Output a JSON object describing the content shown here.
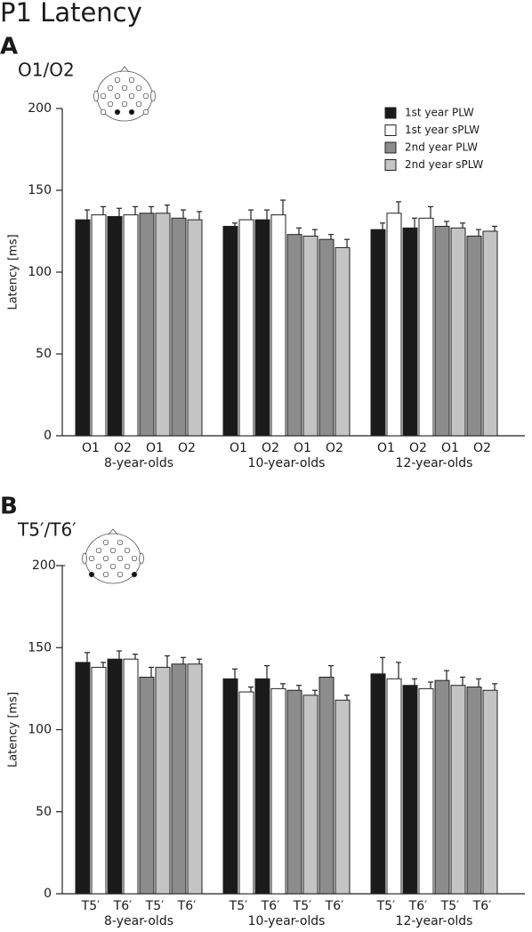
{
  "title": "P1 Latency",
  "chart_data": [
    {
      "type": "bar",
      "label": "A",
      "subtitle": "O1/O2",
      "ylabel": "Latency [ms]",
      "ylim": [
        0,
        200
      ],
      "yticks": [
        0,
        50,
        100,
        150,
        200
      ],
      "legend": "upper right",
      "groups": [
        "8-year-olds",
        "10-year-olds",
        "12-year-olds"
      ],
      "categories": [
        "O1",
        "O2",
        "O1",
        "O2",
        "O1",
        "O2",
        "O1",
        "O2",
        "O1",
        "O2",
        "O1",
        "O2"
      ],
      "series": [
        {
          "name": "1st year PLW",
          "color": "#1a1a1a",
          "values": [
            132,
            134,
            null,
            null,
            128,
            132,
            null,
            null,
            126,
            127,
            null,
            null
          ],
          "errors": [
            6,
            5,
            null,
            null,
            2,
            6,
            null,
            null,
            4,
            6,
            null,
            null
          ]
        },
        {
          "name": "1st year sPLW",
          "color": "#ffffff",
          "values": [
            135,
            135,
            null,
            null,
            132,
            135,
            null,
            null,
            136,
            133,
            null,
            null
          ],
          "errors": [
            5,
            5,
            null,
            null,
            6,
            9,
            null,
            null,
            7,
            7,
            null,
            null
          ]
        },
        {
          "name": "2nd year PLW",
          "color": "#8c8c8c",
          "values": [
            null,
            null,
            136,
            133,
            null,
            null,
            123,
            120,
            null,
            null,
            128,
            122
          ],
          "errors": [
            null,
            null,
            4,
            5,
            null,
            null,
            4,
            3,
            null,
            null,
            3,
            4
          ]
        },
        {
          "name": "2nd year sPLW",
          "color": "#c4c4c4",
          "values": [
            null,
            null,
            136,
            132,
            null,
            null,
            122,
            115,
            null,
            null,
            127,
            125
          ],
          "errors": [
            null,
            null,
            5,
            5,
            null,
            null,
            4,
            5,
            null,
            null,
            3,
            3
          ]
        }
      ]
    },
    {
      "type": "bar",
      "label": "B",
      "subtitle": "T5′/T6′",
      "ylabel": "Latency [ms]",
      "ylim": [
        0,
        200
      ],
      "yticks": [
        0,
        50,
        100,
        150,
        {
          "value": 200,
          "label": "200 –"
        }
      ],
      "groups": [
        "8-year-olds",
        "10-year-olds",
        "12-year-olds"
      ],
      "categories": [
        "T5′",
        "T6′",
        "T5′",
        "T6′",
        "T5′",
        "T6′",
        "T5′",
        "T6′",
        "T5′",
        "T6′",
        "T5′",
        "T6′"
      ],
      "series": [
        {
          "color": "#1a1a1a",
          "values": [
            141,
            143,
            null,
            null,
            131,
            131,
            null,
            null,
            134,
            127,
            null,
            null
          ],
          "errors": [
            6,
            5,
            null,
            null,
            6,
            8,
            null,
            null,
            10,
            4,
            null,
            null
          ]
        },
        {
          "color": "#ffffff",
          "values": [
            138,
            143,
            null,
            null,
            123,
            125,
            null,
            null,
            131,
            125,
            null,
            null
          ],
          "errors": [
            3,
            3,
            null,
            null,
            3,
            3,
            null,
            null,
            10,
            4,
            null,
            null
          ]
        },
        {
          "color": "#8c8c8c",
          "values": [
            null,
            null,
            132,
            140,
            null,
            null,
            124,
            132,
            null,
            null,
            130,
            126
          ],
          "errors": [
            null,
            null,
            6,
            4,
            null,
            null,
            3,
            7,
            null,
            null,
            6,
            5
          ]
        },
        {
          "color": "#c4c4c4",
          "values": [
            null,
            null,
            138,
            140,
            null,
            null,
            121,
            118,
            null,
            null,
            127,
            124
          ],
          "errors": [
            null,
            null,
            7,
            3,
            null,
            null,
            3,
            3,
            null,
            null,
            5,
            4
          ]
        }
      ]
    }
  ]
}
